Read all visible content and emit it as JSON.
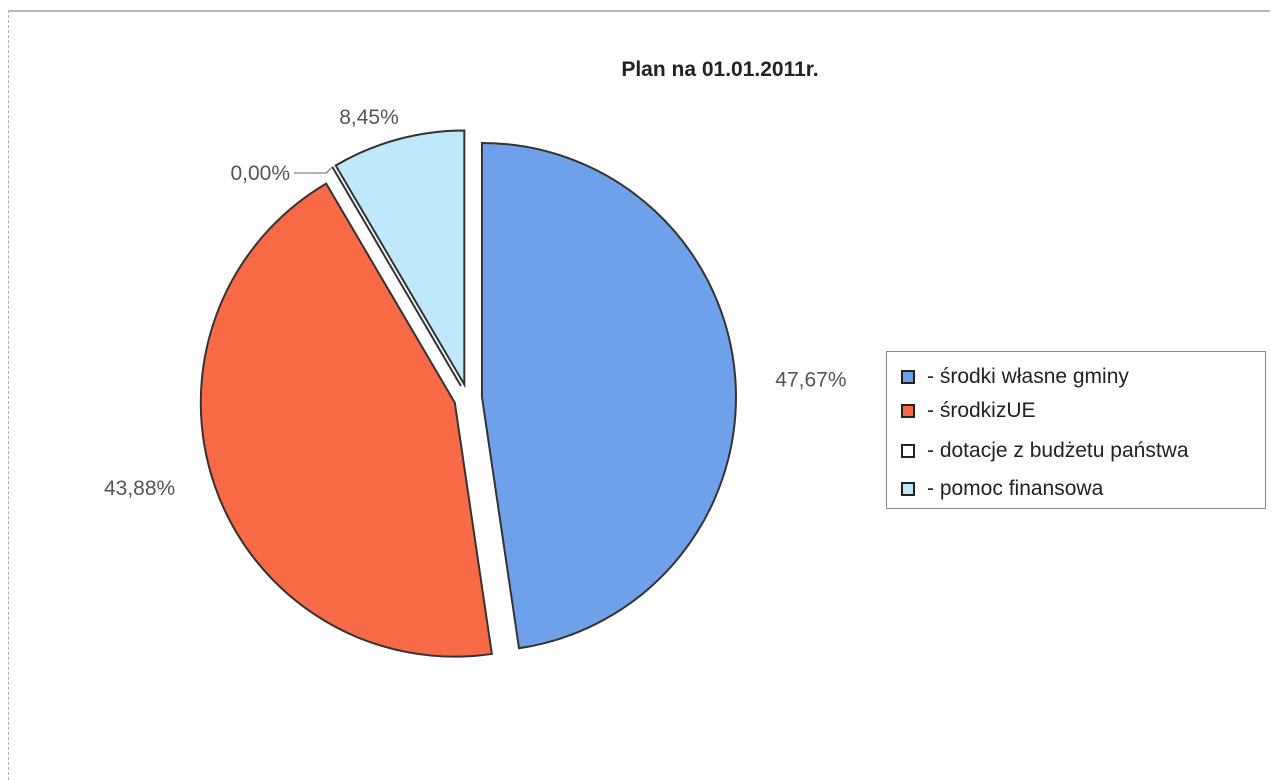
{
  "chart_data": {
    "type": "pie",
    "title": "Plan na 01.01.2011r.",
    "slices": [
      {
        "name": "- środki własne gminy",
        "value": 47.67,
        "label": "47,67%",
        "color": "#6fa0ea"
      },
      {
        "name": "- środkizUE",
        "value": 43.88,
        "label": "43,88%",
        "color": "#f86a46"
      },
      {
        "name": "- dotacje z budżetu państwa",
        "value": 0.0,
        "label": "0,00%",
        "color": "#ffffff"
      },
      {
        "name": "- pomoc finansowa",
        "value": 8.45,
        "label": "8,45%",
        "color": "#bfe9fb"
      }
    ],
    "legend_position": "right"
  }
}
